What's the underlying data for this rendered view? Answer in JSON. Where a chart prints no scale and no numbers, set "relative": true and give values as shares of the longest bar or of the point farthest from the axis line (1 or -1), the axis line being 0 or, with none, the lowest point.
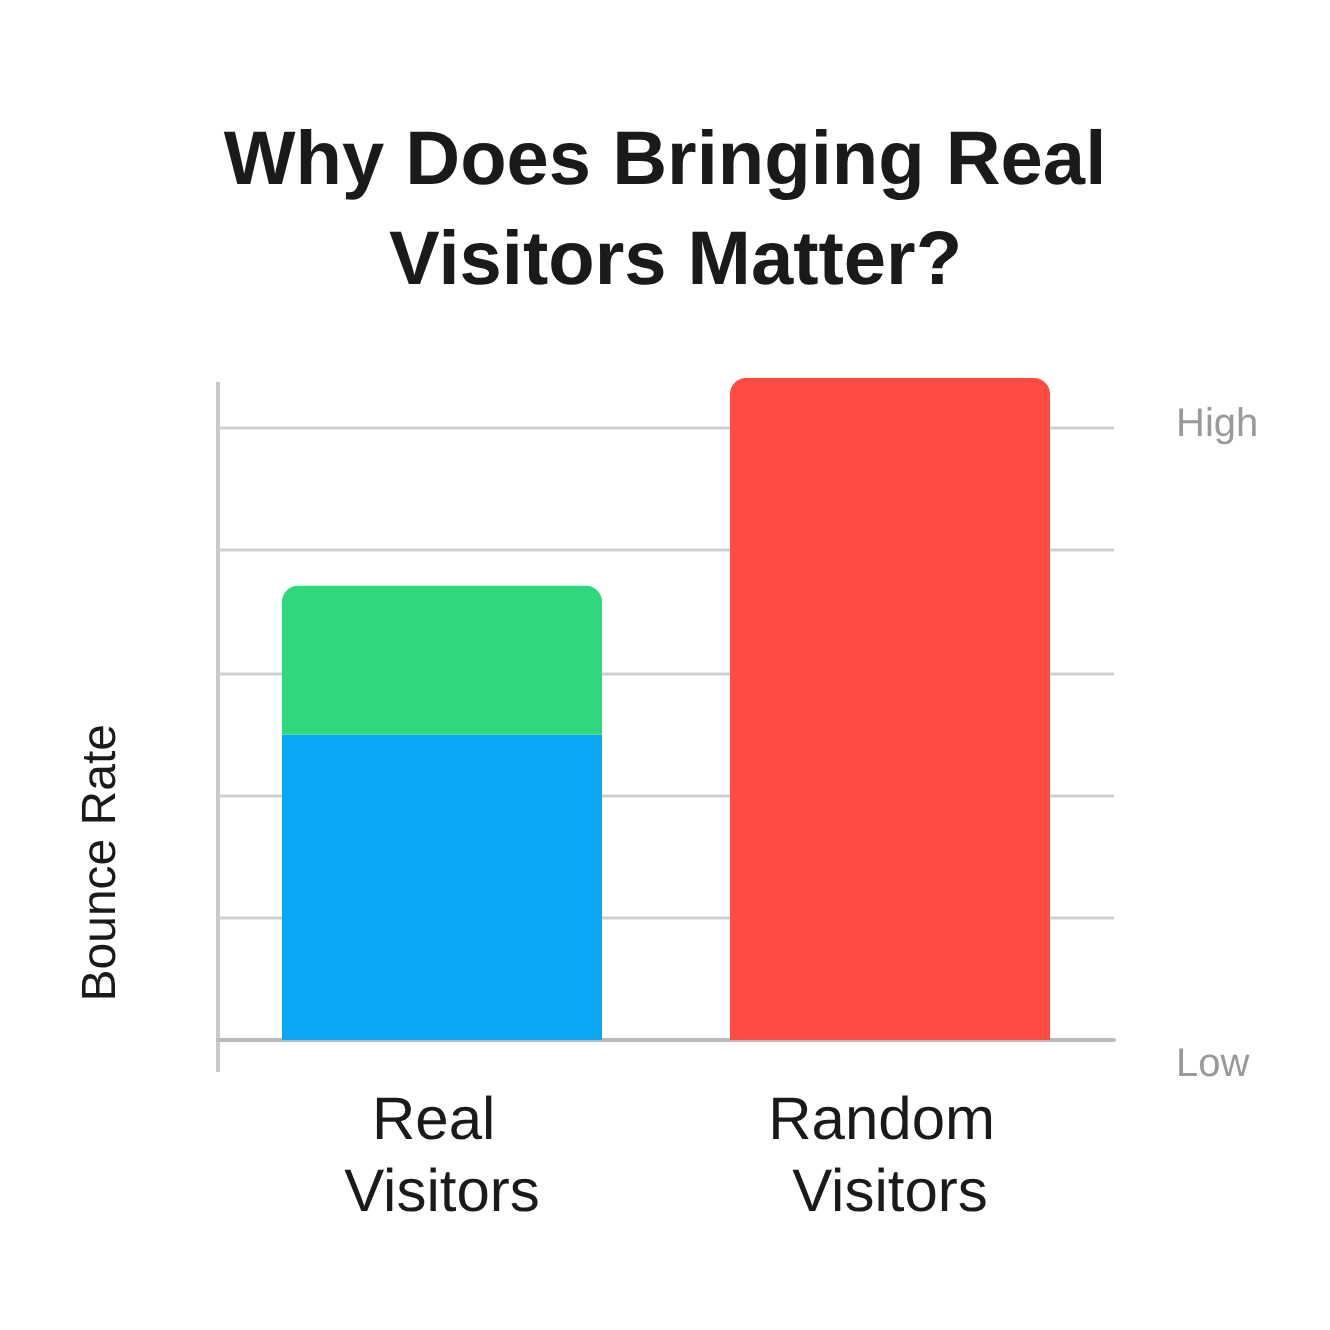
{
  "chart_data": {
    "type": "bar",
    "title": "Why Does Bringing Real Visitors Matter?",
    "ylabel": "Bounce Rate",
    "categories": [
      "Real Visitors",
      "Random Visitors"
    ],
    "relative": true,
    "stacked": true,
    "series": [
      {
        "colors": [
          "#0ba7f4",
          "#ff4b41"
        ],
        "values": [
          0.461,
          1
        ]
      },
      {
        "color": "#2ed87b",
        "values": [
          0.225,
          null
        ]
      }
    ],
    "annotations": [
      "High",
      "Low"
    ],
    "grid": "y"
  }
}
